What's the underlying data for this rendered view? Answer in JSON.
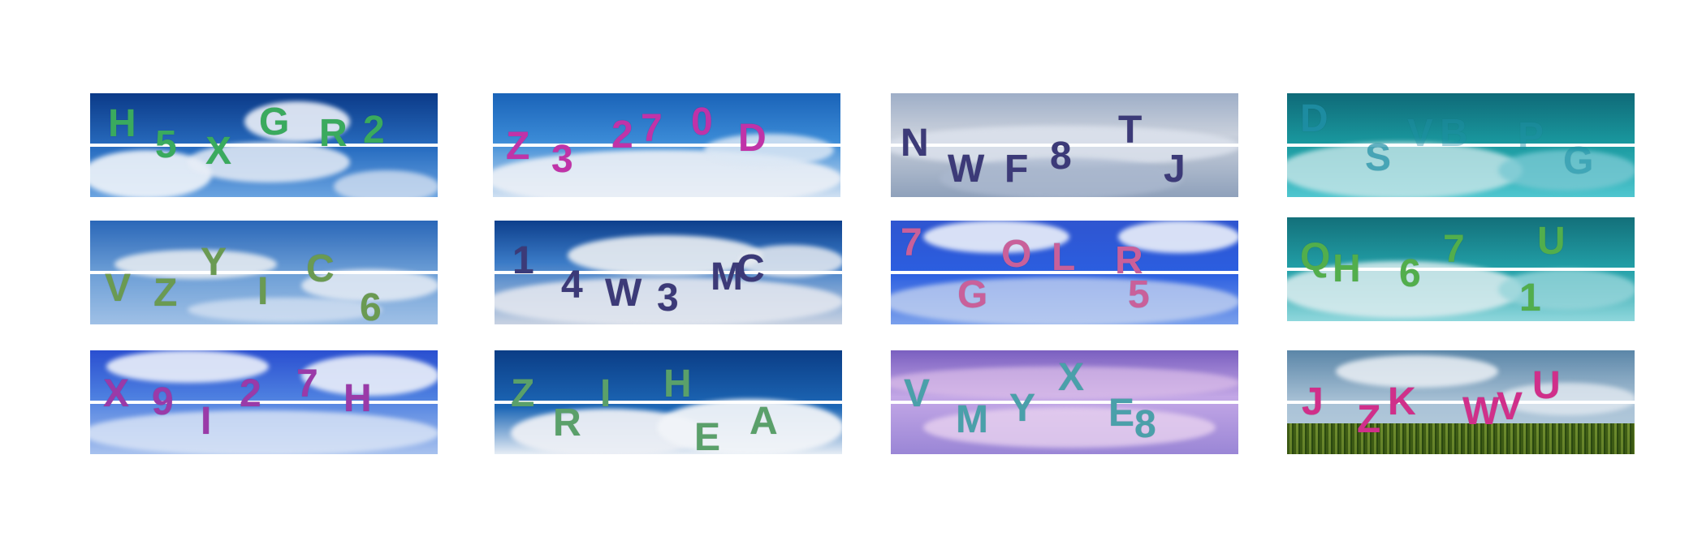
{
  "captcha_tiles": [
    {
      "text_color": "#3aaa5e",
      "characters": [
        "H",
        "5",
        "X",
        "G",
        "R",
        "2"
      ]
    },
    {
      "text_color": "#c033a8",
      "characters": [
        "Z",
        "3",
        "2",
        "7",
        "0",
        "D"
      ]
    },
    {
      "text_color": "#3c3a78",
      "characters": [
        "N",
        "W",
        "F",
        "8",
        "T",
        "J"
      ]
    },
    {
      "text_color": "#1f8fa6",
      "characters": [
        "D",
        "S",
        "V",
        "B",
        "P",
        "G"
      ]
    },
    {
      "text_color": "#6a9a52",
      "characters": [
        "V",
        "Z",
        "Y",
        "I",
        "C",
        "6"
      ]
    },
    {
      "text_color": "#3c3a78",
      "characters": [
        "1",
        "4",
        "W",
        "3",
        "M",
        "C"
      ]
    },
    {
      "text_color": "#c9609a",
      "characters": [
        "7",
        "G",
        "O",
        "L",
        "R",
        "5"
      ]
    },
    {
      "text_color": "#52ae4c",
      "characters": [
        "Q",
        "H",
        "6",
        "7",
        "1",
        "U"
      ]
    },
    {
      "text_color": "#9a3aa8",
      "characters": [
        "X",
        "9",
        "I",
        "2",
        "7",
        "H"
      ]
    },
    {
      "text_color": "#5aa06a",
      "characters": [
        "Z",
        "R",
        "I",
        "H",
        "E",
        "A"
      ]
    },
    {
      "text_color": "#4aa0aa",
      "characters": [
        "V",
        "M",
        "Y",
        "X",
        "E",
        "8"
      ]
    },
    {
      "text_color": "#d02f8a",
      "characters": [
        "J",
        "Z",
        "K",
        "W",
        "V",
        "U"
      ]
    }
  ]
}
